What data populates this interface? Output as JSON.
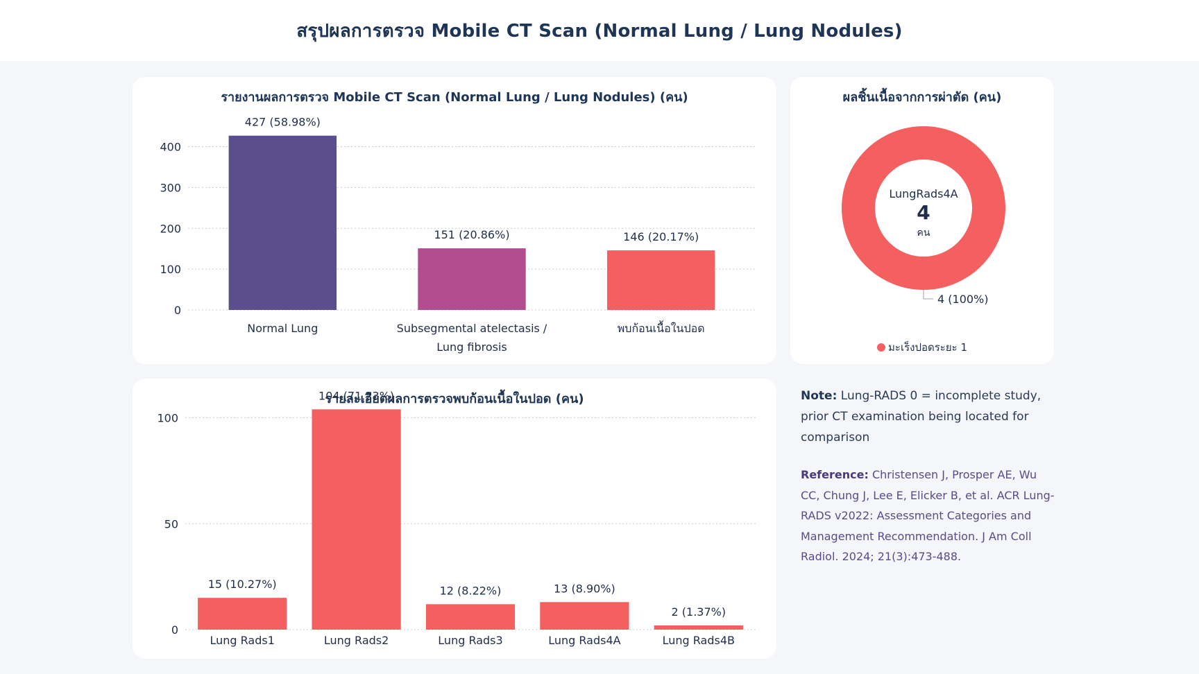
{
  "header": {
    "title": "สรุปผลการตรวจ Mobile CT Scan (Normal Lung / Lung Nodules)"
  },
  "colors": {
    "purple": "#5a4f8c",
    "magenta": "#b24e8f",
    "coral": "#f4605f"
  },
  "chart_data": [
    {
      "type": "bar",
      "title": "รายงานผลการตรวจ Mobile CT Scan (Normal Lung / Lung Nodules) (คน)",
      "categories": [
        "Normal Lung",
        "Subsegmental atelectasis / Lung fibrosis",
        "พบก้อนเนื้อในปอด"
      ],
      "category_lines": [
        [
          "Normal Lung"
        ],
        [
          "Subsegmental atelectasis /",
          "Lung fibrosis"
        ],
        [
          "พบก้อนเนื้อในปอด"
        ]
      ],
      "values": [
        427,
        151,
        146
      ],
      "data_labels": [
        "427 (58.98%)",
        "151 (20.86%)",
        "146 (20.17%)"
      ],
      "bar_colors": [
        "#5a4f8c",
        "#b24e8f",
        "#f4605f"
      ],
      "yticks": [
        0,
        100,
        200,
        300,
        400
      ],
      "ylim": [
        0,
        440
      ],
      "grid": true
    },
    {
      "type": "bar",
      "title": "รายละเอียดผลการตรวจพบก้อนเนื้อในปอด (คน)",
      "categories": [
        "Lung Rads1",
        "Lung Rads2",
        "Lung Rads3",
        "Lung Rads4A",
        "Lung Rads4B"
      ],
      "values": [
        15,
        104,
        12,
        13,
        2
      ],
      "data_labels": [
        "15 (10.27%)",
        "104 (71.23%)",
        "12 (8.22%)",
        "13 (8.90%)",
        "2 (1.37%)"
      ],
      "bar_colors": [
        "#f4605f",
        "#f4605f",
        "#f4605f",
        "#f4605f",
        "#f4605f"
      ],
      "yticks": [
        0,
        50,
        100
      ],
      "ylim": [
        0,
        110
      ],
      "grid": true
    },
    {
      "type": "pie",
      "title": "ผลชิ้นเนื้อจากการผ่าตัด (คน)",
      "labels": [
        "มะเร็งปอดระยะ 1"
      ],
      "values": [
        4
      ],
      "data_labels": [
        "4 (100%)"
      ],
      "colors": [
        "#f4605f"
      ],
      "center": {
        "label": "LungRads4A",
        "value": "4",
        "unit": "คน"
      },
      "legend": "bottom"
    }
  ],
  "notes": {
    "note_label": "Note:",
    "note_text": " Lung-RADS 0 = incomplete study, prior CT examination being located for comparison",
    "ref_label": "Reference:",
    "ref_text": " Christensen J, Prosper AE, Wu CC, Chung J, Lee E, Elicker B, et al. ACR Lung-RADS v2022: Assessment Categories and Management Recommendation. J Am Coll Radiol. 2024; 21(3):473-488."
  }
}
